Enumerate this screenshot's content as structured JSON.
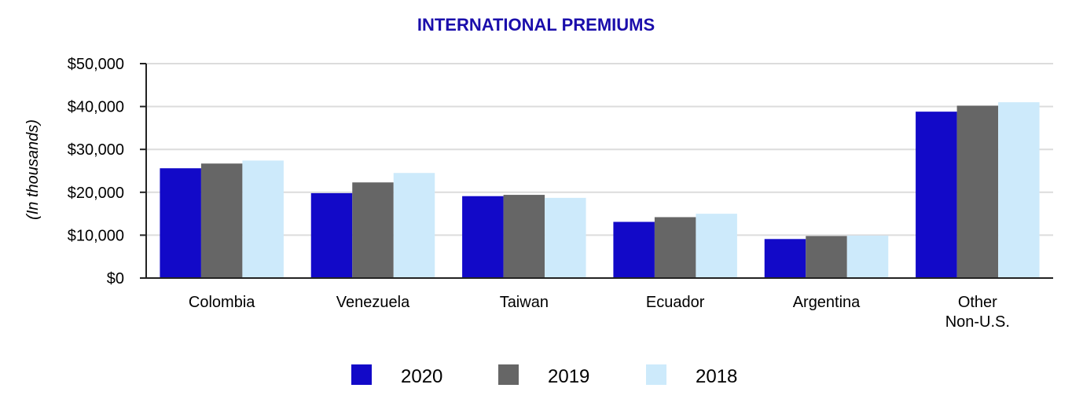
{
  "chart_data": {
    "type": "bar",
    "title": "INTERNATIONAL PREMIUMS",
    "title_color": "#1a0dab",
    "ylabel": "(In thousands)",
    "xlabel": "",
    "ylim": [
      0,
      50000
    ],
    "y_ticks": [
      {
        "value": 0,
        "label": "$0"
      },
      {
        "value": 10000,
        "label": "$10,000"
      },
      {
        "value": 20000,
        "label": "$20,000"
      },
      {
        "value": 30000,
        "label": "$30,000"
      },
      {
        "value": 40000,
        "label": "$40,000"
      },
      {
        "value": 50000,
        "label": "$50,000"
      }
    ],
    "grid": true,
    "categories": [
      [
        "Colombia"
      ],
      [
        "Venezuela"
      ],
      [
        "Taiwan"
      ],
      [
        "Ecuador"
      ],
      [
        "Argentina"
      ],
      [
        "Other",
        "Non-U.S."
      ]
    ],
    "series": [
      {
        "name": "2020",
        "color": "#1209c8",
        "values": [
          25600,
          19800,
          19100,
          13100,
          9100,
          38800
        ]
      },
      {
        "name": "2019",
        "color": "#666666",
        "values": [
          26700,
          22300,
          19400,
          14200,
          9800,
          40200
        ]
      },
      {
        "name": "2018",
        "color": "#cdeafb",
        "values": [
          27400,
          24500,
          18700,
          15000,
          9900,
          41000
        ]
      }
    ],
    "legend_position": "bottom"
  }
}
